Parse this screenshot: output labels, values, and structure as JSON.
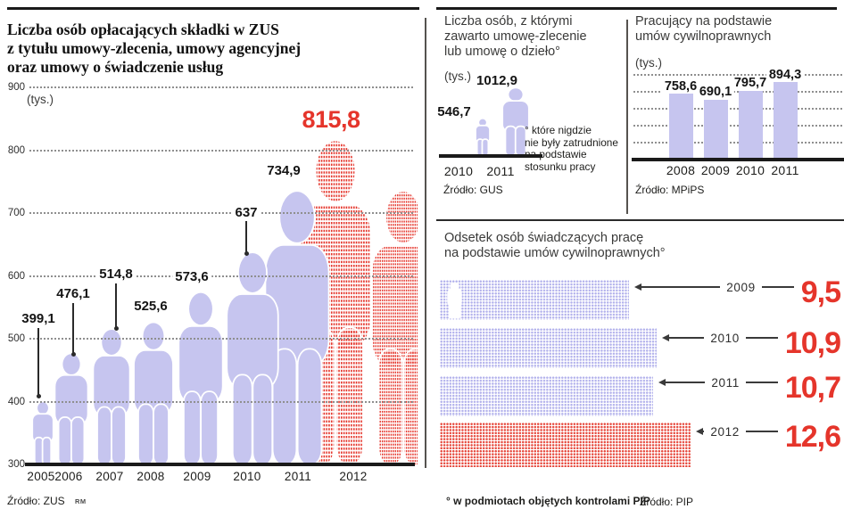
{
  "colors": {
    "lavender": "#c6c5ef",
    "red": "#e5352b",
    "dot_blue": "#b3b2ec"
  },
  "credit": "RM",
  "chart_data": [
    {
      "id": "zus",
      "type": "bar",
      "variant": "pictogram-people",
      "title": "Liczba osób opłacających składki w ZUS z tytułu umowy-zlecenia, umowy agencyjnej oraz umowy o świadczenie usług",
      "title_lines": [
        "Liczba osób opłacających składki w ZUS",
        "z tytułu umowy-zlecenia, umowy agencyjnej",
        "oraz umowy o świadczenie usług"
      ],
      "unit": "(tys.)",
      "categories": [
        "2005",
        "2006",
        "2007",
        "2008",
        "2009",
        "2010",
        "2011",
        "2012"
      ],
      "values": [
        399.1,
        476.1,
        514.8,
        525.6,
        573.6,
        637,
        734.9,
        815.8
      ],
      "value_labels": [
        "399,1",
        "476,1",
        "514,8",
        "525,6",
        "573,6",
        "637",
        "734,9",
        "815,8"
      ],
      "highlight_category": "2012",
      "ylim": [
        300,
        900
      ],
      "y_ticks": [
        "900",
        "800",
        "700",
        "600",
        "500",
        "400",
        "300"
      ],
      "grid": "dotted-horizontal",
      "source": "Źródło: ZUS"
    },
    {
      "id": "gus",
      "type": "bar",
      "variant": "pictogram-people",
      "title": "Liczba osób, z którymi zawarto umowę-zlecenie lub umowę o dzieło°",
      "title_lines": [
        "Liczba osób, z którymi",
        "zawarto umowę-zlecenie",
        "lub umowę o dzieło°"
      ],
      "unit": "(tys.)",
      "categories": [
        "2010",
        "2011"
      ],
      "values": [
        546.7,
        1012.9
      ],
      "value_labels": [
        "546,7",
        "1012,9"
      ],
      "ylim": [
        0,
        1012.9
      ],
      "footnote_lines": [
        "° które nigdzie",
        "nie były zatrudnione",
        "na podstawie",
        "stosunku pracy"
      ],
      "source": "Źródło: GUS"
    },
    {
      "id": "mpips",
      "type": "bar",
      "title": "Pracujący na podstawie umów cywilnoprawnych",
      "title_lines": [
        "Pracujący na podstawie",
        "umów cywilnoprawnych"
      ],
      "unit": "(tys.)",
      "categories": [
        "2008",
        "2009",
        "2010",
        "2011"
      ],
      "values": [
        758.6,
        690.1,
        795.7,
        894.3
      ],
      "value_labels": [
        "758,6",
        "690,1",
        "795,7",
        "894,3"
      ],
      "ylim": [
        0,
        900
      ],
      "grid": "dotted-horizontal",
      "source": "Źródło: MPiPS"
    },
    {
      "id": "pip",
      "type": "bar",
      "variant": "horizontal-dotted",
      "title": "Odsetek osób świadczących pracę na podstawie umów cywilnoprawnych°",
      "title_lines": [
        "Odsetek osób świadczących pracę",
        "na podstawie umów cywilnoprawnych°"
      ],
      "categories": [
        "2009",
        "2010",
        "2011",
        "2012"
      ],
      "values": [
        9.5,
        10.9,
        10.7,
        12.6
      ],
      "value_labels": [
        "9,5",
        "10,9",
        "10,7",
        "12,6"
      ],
      "highlight_category": "2012",
      "xlim": [
        0,
        12.6
      ],
      "footnote": "° w podmiotach objętych kontrolami PIP",
      "source": "Źródło: PIP"
    }
  ]
}
